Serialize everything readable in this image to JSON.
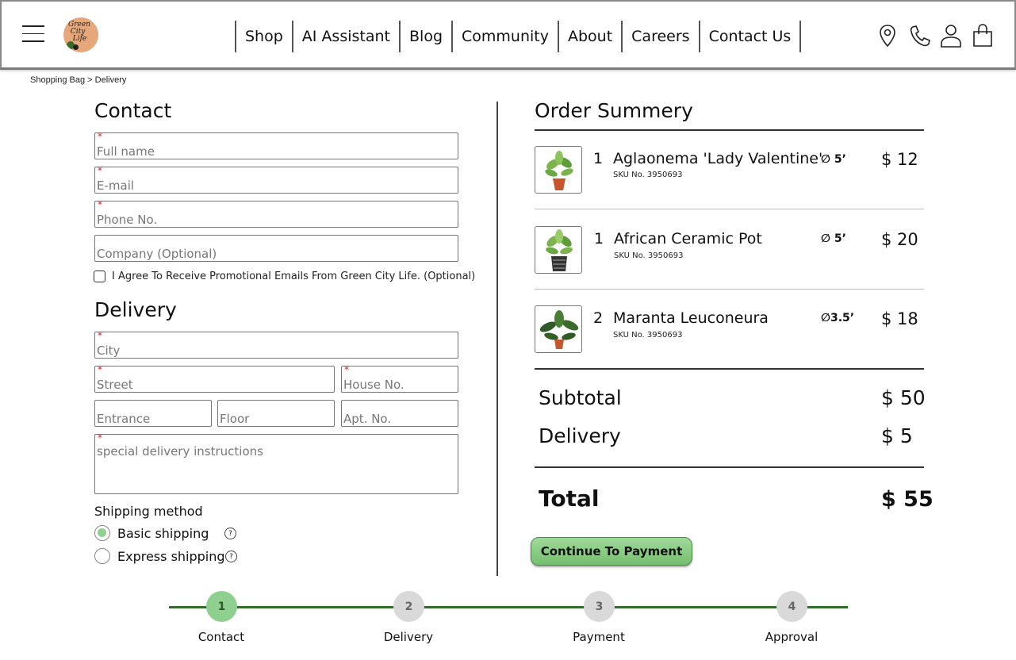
{
  "header": {
    "logo_text": "Green City Life",
    "nav": [
      "Shop",
      "AI Assistant",
      "Blog",
      "Community",
      "About",
      "Careers",
      "Contact Us"
    ]
  },
  "breadcrumb": "Shopping Bag > Delivery",
  "contact": {
    "title": "Contact",
    "required_mark": "*",
    "full_name": "Full name",
    "email": "E-mail",
    "phone": "Phone No.",
    "company": "Company (Optional)",
    "agree": "I Agree To Receive Promotional Emails From Green City Life. (Optional)"
  },
  "delivery": {
    "title": "Delivery",
    "city": "City",
    "street": "Street",
    "house": "House No.",
    "entrance": "Entrance",
    "floor": "Floor",
    "apt": "Apt. No.",
    "instructions": "special delivery instructions"
  },
  "shipping": {
    "title": "Shipping method",
    "options": [
      "Basic shipping",
      "Express shipping"
    ],
    "selected": "Basic shipping",
    "help": "?"
  },
  "summary": {
    "title": "Order Summery",
    "items": [
      {
        "qty": "1",
        "name": "Aglaonema 'Lady Valentine'",
        "sku": "SKU No. 3950693",
        "size": "∅ 5’",
        "price": "$ 12"
      },
      {
        "qty": "1",
        "name": "African Ceramic Pot",
        "sku": "SKU No. 3950693",
        "size": "∅ 5’",
        "price": "$ 20"
      },
      {
        "qty": "2",
        "name": "Maranta Leuconeura",
        "sku": "SKU No. 3950693",
        "size": "∅3.5’",
        "price": "$ 18"
      }
    ],
    "subtotal_label": "Subtotal",
    "subtotal": "$ 50",
    "delivery_label": "Delivery",
    "delivery": "$ 5",
    "total_label": "Total",
    "total": "$ 55",
    "pay_button": "Continue To Payment"
  },
  "stepper": {
    "steps": [
      {
        "num": "1",
        "label": "Contact"
      },
      {
        "num": "2",
        "label": "Delivery"
      },
      {
        "num": "3",
        "label": "Payment"
      },
      {
        "num": "4",
        "label": "Approval"
      }
    ]
  }
}
